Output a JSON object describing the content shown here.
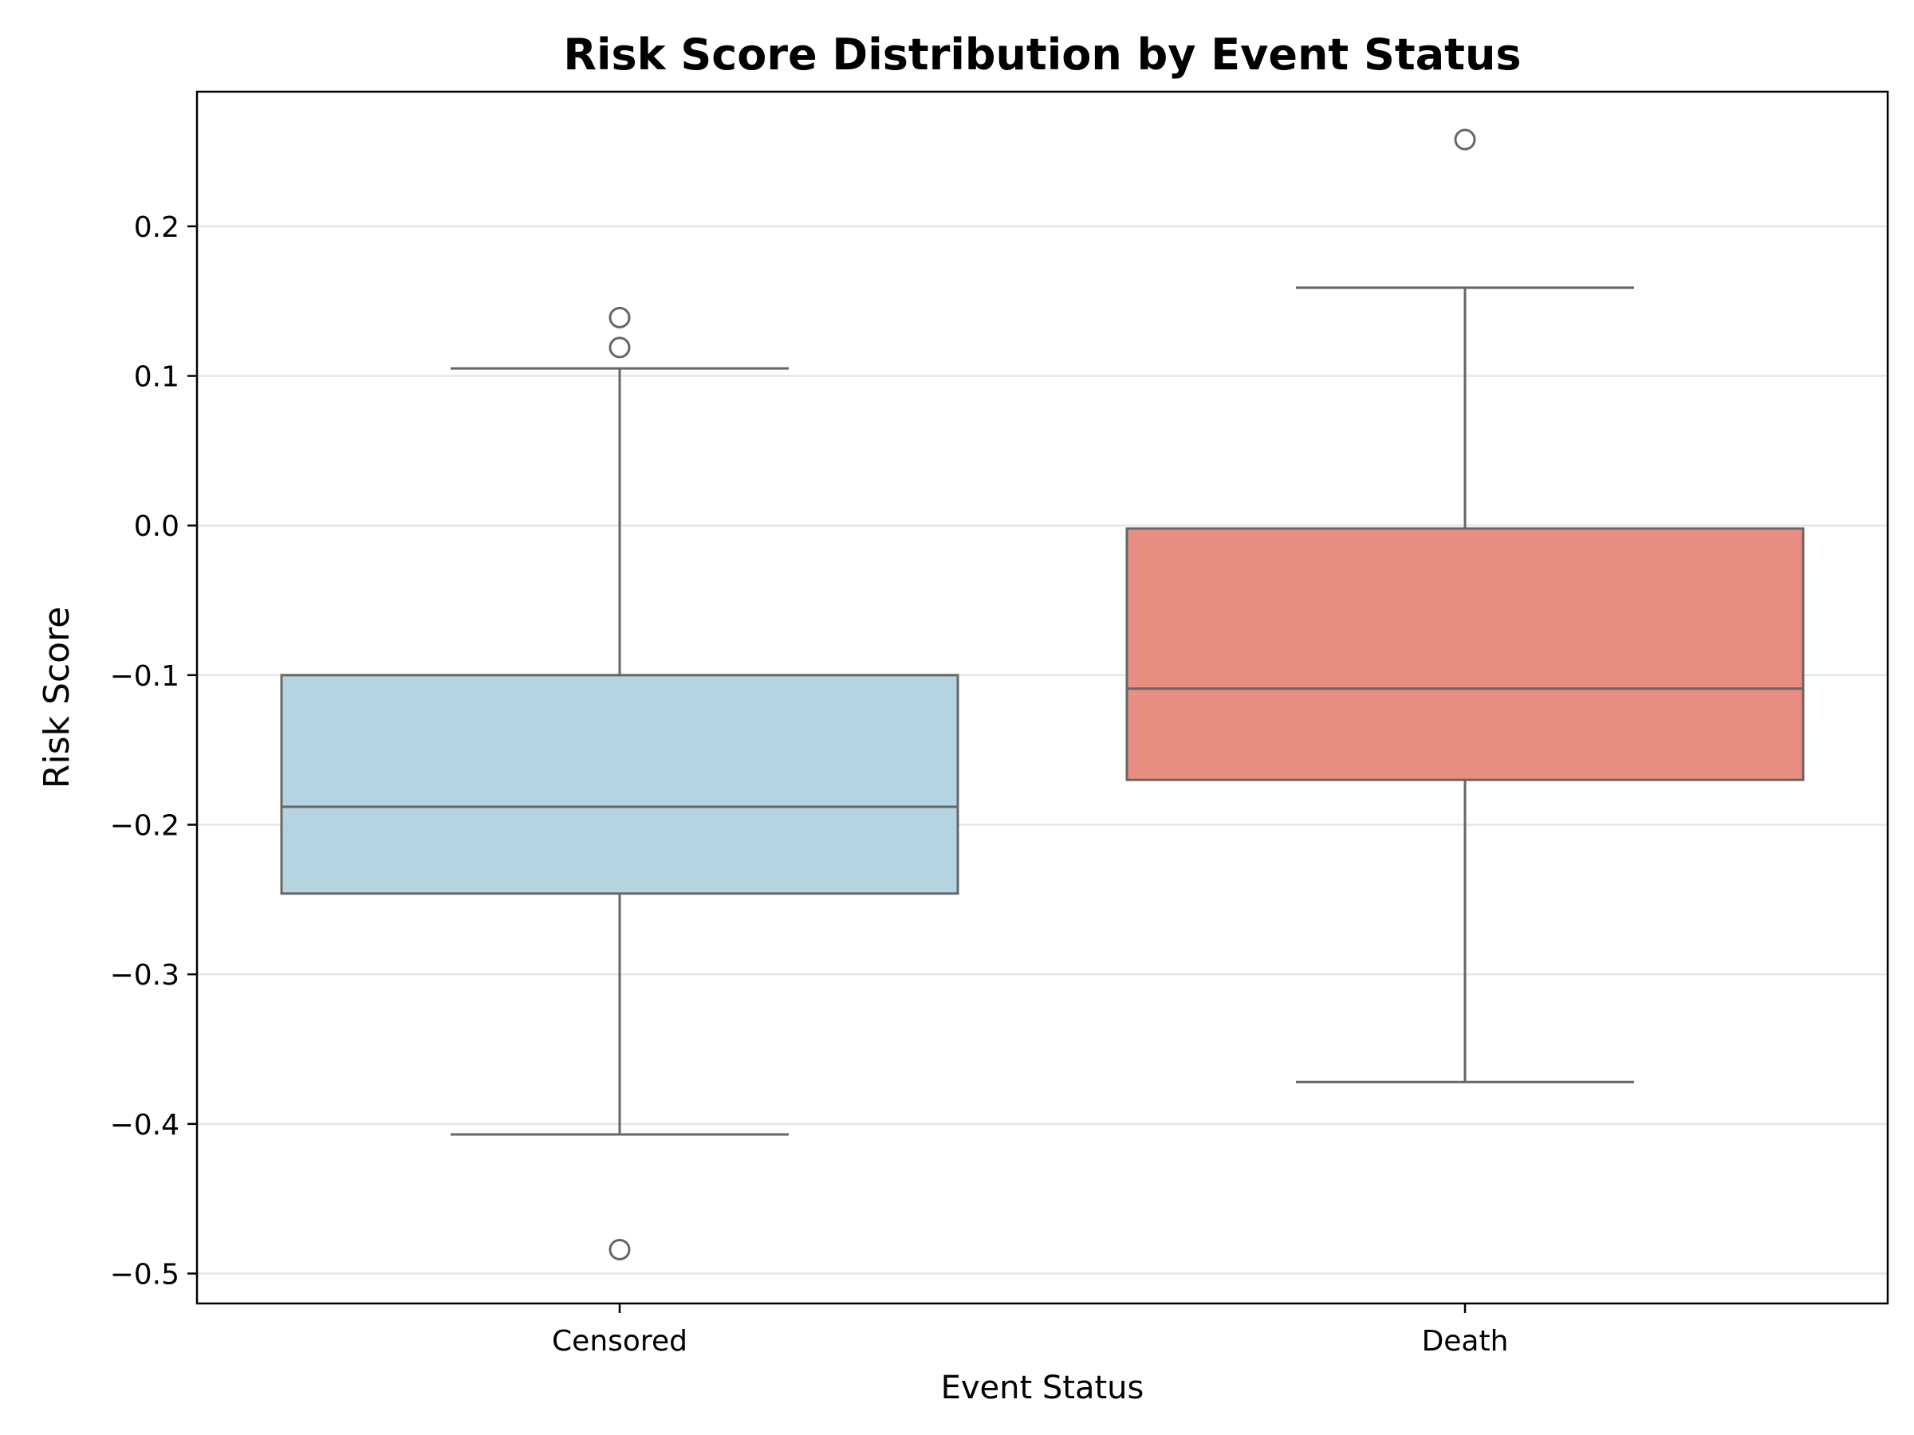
{
  "chart_data": {
    "type": "box",
    "title": "Risk Score Distribution by Event Status",
    "xlabel": "Event Status",
    "ylabel": "Risk Score",
    "ylim": [
      -0.52,
      0.29
    ],
    "yticks": [
      0.2,
      0.1,
      0.0,
      -0.1,
      -0.2,
      -0.3,
      -0.4,
      -0.5
    ],
    "ytick_labels": [
      "0.2",
      "0.1",
      "0.0",
      "−0.1",
      "−0.2",
      "−0.3",
      "−0.4",
      "−0.5"
    ],
    "grid": "horizontal",
    "categories": [
      "Censored",
      "Death"
    ],
    "boxes": [
      {
        "category": "Censored",
        "whisker_low": -0.407,
        "q1": -0.246,
        "median": -0.188,
        "q3": -0.1,
        "whisker_high": 0.105,
        "outliers": [
          0.139,
          0.119,
          -0.484
        ],
        "color": "#b4d5df"
      },
      {
        "category": "Death",
        "whisker_low": -0.372,
        "q1": -0.17,
        "median": -0.109,
        "q3": -0.002,
        "whisker_high": 0.159,
        "outliers": [
          0.258
        ],
        "color": "#e88e83"
      }
    ],
    "line_color": "#666666",
    "grid_color": "#e6e6e6"
  }
}
